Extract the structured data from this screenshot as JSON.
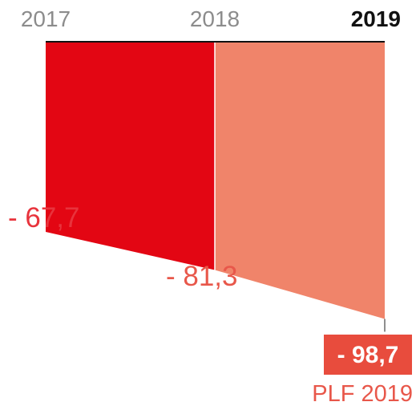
{
  "chart_data": {
    "type": "area",
    "categories": [
      "2017",
      "2018",
      "2019"
    ],
    "values": [
      -67.7,
      -81.3,
      -98.7
    ],
    "value_labels": [
      "- 67,7",
      "- 81,3",
      "- 98,7"
    ],
    "highlight_category": "2019",
    "annotation": "PLF 2019",
    "colors": {
      "segment_1": "#e30613",
      "segment_2": "#f0846a",
      "label_first": "#e8333c",
      "label_second": "#e8574a",
      "highlight_box": "#e84c3d",
      "highlight_text": "#ffffff",
      "annotation_text": "#e8574a",
      "year_muted": "#8c8c8c",
      "year_bold": "#111111",
      "baseline": "#111111"
    }
  }
}
